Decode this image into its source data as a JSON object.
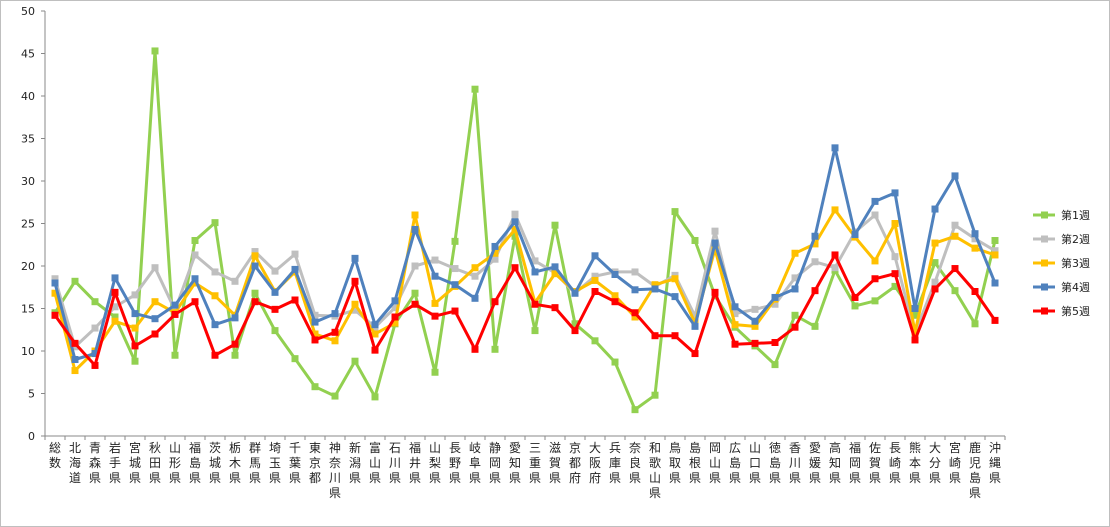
{
  "chart_data": {
    "type": "line",
    "title": "",
    "xlabel": "",
    "ylabel": "",
    "ylim": [
      0,
      50
    ],
    "yticks": [
      0,
      5,
      10,
      15,
      20,
      25,
      30,
      35,
      40,
      45,
      50
    ],
    "grid": false,
    "legend_position": "right",
    "categories": [
      "総数",
      "北海道",
      "青森県",
      "岩手県",
      "宮城県",
      "秋田県",
      "山形県",
      "福島県",
      "茨城県",
      "栃木県",
      "群馬県",
      "埼玉県",
      "千葉県",
      "東京都",
      "神奈川県",
      "新潟県",
      "富山県",
      "石川県",
      "福井県",
      "山梨県",
      "長野県",
      "岐阜県",
      "静岡県",
      "愛知県",
      "三重県",
      "滋賀県",
      "京都府",
      "大阪府",
      "兵庫県",
      "奈良県",
      "和歌山県",
      "鳥取県",
      "島根県",
      "岡山県",
      "広島県",
      "山口県",
      "徳島県",
      "香川県",
      "愛媛県",
      "高知県",
      "福岡県",
      "佐賀県",
      "長崎県",
      "熊本県",
      "大分県",
      "宮崎県",
      "鹿児島県",
      "沖縄県"
    ],
    "series": [
      {
        "name": "第1週",
        "color": "#92d050",
        "marker": "square",
        "values": [
          14.5,
          18.2,
          15.8,
          14.0,
          8.8,
          45.3,
          9.5,
          23.0,
          25.1,
          9.5,
          16.8,
          12.4,
          9.1,
          5.8,
          4.7,
          8.8,
          4.6,
          13.2,
          16.8,
          7.5,
          22.9,
          40.8,
          10.2,
          23.5,
          12.4,
          24.8,
          13.2,
          11.2,
          8.7,
          3.1,
          4.8,
          26.4,
          23.0,
          16.5,
          12.8,
          10.6,
          8.4,
          14.2,
          12.9,
          19.5,
          15.3,
          15.9,
          17.6,
          14.2,
          20.4,
          17.1,
          13.2,
          23.0
        ]
      },
      {
        "name": "第2週",
        "color": "#bfbfbf",
        "marker": "square",
        "values": [
          18.5,
          10.5,
          12.7,
          15.2,
          16.6,
          19.8,
          14.8,
          21.3,
          19.3,
          18.2,
          21.7,
          19.4,
          21.4,
          14.2,
          14.1,
          14.8,
          12.8,
          15.1,
          20.0,
          20.7,
          19.7,
          18.8,
          20.8,
          26.1,
          20.6,
          19.2,
          16.8,
          18.8,
          19.3,
          19.3,
          17.6,
          18.9,
          14.1,
          24.1,
          14.4,
          14.9,
          15.5,
          18.6,
          20.5,
          19.8,
          24.0,
          26.0,
          21.1,
          12.1,
          18.1,
          24.8,
          23.2,
          21.8
        ]
      },
      {
        "name": "第3週",
        "color": "#ffc000",
        "marker": "square",
        "values": [
          16.8,
          7.7,
          10.0,
          13.5,
          12.7,
          15.8,
          14.5,
          18.0,
          16.5,
          14.2,
          21.2,
          17.0,
          19.3,
          12.0,
          11.2,
          15.5,
          12.0,
          13.3,
          26.0,
          15.6,
          17.6,
          19.8,
          21.5,
          24.3,
          15.7,
          19.1,
          17.0,
          18.3,
          16.5,
          14.0,
          17.8,
          18.5,
          13.3,
          22.0,
          13.1,
          12.9,
          16.1,
          21.5,
          22.6,
          26.6,
          23.4,
          20.6,
          25.0,
          12.2,
          22.7,
          23.5,
          22.1,
          21.3
        ]
      },
      {
        "name": "第4週",
        "color": "#4f81bd",
        "marker": "square",
        "values": [
          18.0,
          9.0,
          9.7,
          18.6,
          14.4,
          13.8,
          15.4,
          18.5,
          13.1,
          13.9,
          20.0,
          16.9,
          19.6,
          13.4,
          14.4,
          20.9,
          13.1,
          15.9,
          24.3,
          18.8,
          17.8,
          16.2,
          22.3,
          25.2,
          19.3,
          19.9,
          16.8,
          21.2,
          19.0,
          17.2,
          17.3,
          16.4,
          12.9,
          22.7,
          15.2,
          13.5,
          16.3,
          17.3,
          23.5,
          33.9,
          23.7,
          27.6,
          28.6,
          15.0,
          26.7,
          30.6,
          23.8,
          18.0
        ]
      },
      {
        "name": "第5週",
        "color": "#ff0000",
        "marker": "square",
        "values": [
          14.2,
          10.9,
          8.3,
          16.9,
          10.6,
          12.0,
          14.3,
          15.8,
          9.5,
          10.8,
          15.8,
          14.9,
          16.0,
          11.3,
          12.2,
          18.2,
          10.1,
          14.0,
          15.5,
          14.1,
          14.7,
          10.2,
          15.8,
          19.8,
          15.5,
          15.1,
          12.4,
          17.0,
          15.8,
          14.5,
          11.8,
          11.8,
          9.7,
          16.9,
          10.8,
          10.9,
          11.0,
          12.8,
          17.1,
          21.3,
          16.3,
          18.5,
          19.1,
          11.3,
          17.3,
          19.7,
          17.0,
          13.6
        ]
      }
    ]
  }
}
